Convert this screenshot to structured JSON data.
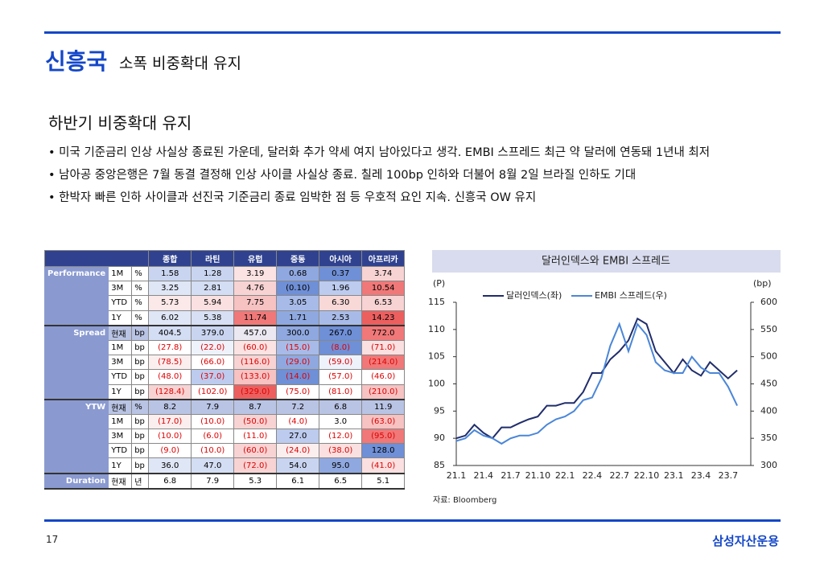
{
  "header": {
    "title": "신흥국",
    "subtitle": "소폭 비중확대 유지"
  },
  "section": {
    "heading": "하반기 비중확대 유지",
    "bullets": [
      "• 미국 기준금리 인상 사실상 종료된 가운데, 달러화 추가 약세 여지 남아있다고 생각. EMBI 스프레드 최근 약 달러에 연동돼 1년내 최저",
      "• 남아공 중앙은행은 7월 동결 결정해 인상 사이클 사실상 종료. 칠레 100bp 인하와 더불어 8월 2일 브라질 인하도 기대",
      "• 한박자 빠른 인하 사이클과 선진국 기준금리 종료 임박한 점 등 우호적 요인 지속. 신흥국 OW 유지"
    ]
  },
  "table": {
    "columns": [
      "종합",
      "라틴",
      "유럽",
      "중동",
      "아시아",
      "아프리카"
    ],
    "groups": [
      {
        "label": "Performance",
        "rows": [
          {
            "period": "1M",
            "unit": "%",
            "cells": [
              "1.58",
              "1.28",
              "3.19",
              "0.68",
              "0.37",
              "3.74"
            ],
            "fills": [
              "#c9d5f0",
              "#c9d5f0",
              "#fbe3e3",
              "#8fa8e0",
              "#6f8fd6",
              "#f8d3d3"
            ]
          },
          {
            "period": "3M",
            "unit": "%",
            "cells": [
              "3.25",
              "2.81",
              "4.76",
              "(0.10)",
              "1.96",
              "10.54"
            ],
            "fills": [
              "#dfe6f6",
              "#d3ddf3",
              "#f8d3d3",
              "#6f8fd6",
              "#bccbee",
              "#f07878"
            ]
          },
          {
            "period": "YTD",
            "unit": "%",
            "cells": [
              "5.73",
              "5.94",
              "7.75",
              "3.05",
              "6.30",
              "6.53"
            ],
            "fills": [
              "#fbe8e8",
              "#fae0e0",
              "#f6c2c2",
              "#a8bbe8",
              "#f9d8d8",
              "#f8d3d3"
            ]
          },
          {
            "period": "1Y",
            "unit": "%",
            "cells": [
              "6.02",
              "5.38",
              "11.74",
              "1.71",
              "2.53",
              "14.23"
            ],
            "fills": [
              "#dfe6f6",
              "#d7dff4",
              "#f07878",
              "#8fa8e0",
              "#a8bbe8",
              "#ec5f5f"
            ]
          }
        ]
      },
      {
        "label": "Spread",
        "negative_color": "#e00000",
        "rows": [
          {
            "period": "현재",
            "unit": "bp",
            "cells": [
              "404.5",
              "379.0",
              "457.0",
              "300.0",
              "267.0",
              "772.0"
            ],
            "fills": [
              "#d3ddf3",
              "#c9d5f0",
              "#ebe8f2",
              "#8fa8e0",
              "#6f8fd6",
              "#f07878"
            ]
          },
          {
            "period": "1M",
            "unit": "bp",
            "cells": [
              "(27.8)",
              "(22.0)",
              "(60.0)",
              "(15.0)",
              "(8.0)",
              "(71.0)"
            ],
            "fills": [
              "#ffffff",
              "#eef2fa",
              "#fbe3e3",
              "#a8bbe8",
              "#6f8fd6",
              "#fae0e0"
            ]
          },
          {
            "period": "3M",
            "unit": "bp",
            "cells": [
              "(78.5)",
              "(66.0)",
              "(116.0)",
              "(29.0)",
              "(59.0)",
              "(214.0)"
            ],
            "fills": [
              "#fbeeee",
              "#ffffff",
              "#f8d3d3",
              "#8fa8e0",
              "#eef2fa",
              "#f07878"
            ]
          },
          {
            "period": "YTD",
            "unit": "bp",
            "cells": [
              "(48.0)",
              "(37.0)",
              "(133.0)",
              "(14.0)",
              "(57.0)",
              "(46.0)"
            ],
            "fills": [
              "#ffffff",
              "#bccbee",
              "#f6c2c2",
              "#6f8fd6",
              "#ffffff",
              "#ffffff"
            ]
          },
          {
            "period": "1Y",
            "unit": "bp",
            "cells": [
              "(128.4)",
              "(102.0)",
              "(329.0)",
              "(75.0)",
              "(81.0)",
              "(210.0)"
            ],
            "fills": [
              "#f8d3d3",
              "#ffffff",
              "#ec5f5f",
              "#ffffff",
              "#ffffff",
              "#f6c2c2"
            ]
          }
        ]
      },
      {
        "label": "YTW",
        "negative_color": "#e00000",
        "rows": [
          {
            "period": "현재",
            "unit": "%",
            "cells": [
              "8.2",
              "7.9",
              "8.7",
              "7.2",
              "6.8",
              "11.9"
            ],
            "fills": [
              "#b9c4e4",
              "#b9c4e4",
              "#b9c4e4",
              "#b9c4e4",
              "#b9c4e4",
              "#b9c4e4"
            ]
          },
          {
            "period": "1M",
            "unit": "bp",
            "cells": [
              "(17.0)",
              "(10.0)",
              "(50.0)",
              "(4.0)",
              "3.0",
              "(63.0)"
            ],
            "fills": [
              "#fbeeee",
              "#ffffff",
              "#f8d3d3",
              "#ffffff",
              "#ffffff",
              "#f6c2c2"
            ]
          },
          {
            "period": "3M",
            "unit": "bp",
            "cells": [
              "(10.0)",
              "(6.0)",
              "(11.0)",
              "27.0",
              "(12.0)",
              "(95.0)"
            ],
            "fills": [
              "#ffffff",
              "#ffffff",
              "#ffffff",
              "#bccbee",
              "#ffffff",
              "#f07878"
            ]
          },
          {
            "period": "YTD",
            "unit": "bp",
            "cells": [
              "(9.0)",
              "(10.0)",
              "(60.0)",
              "(24.0)",
              "(38.0)",
              "128.0"
            ],
            "fills": [
              "#ffffff",
              "#ffffff",
              "#f8d3d3",
              "#fbeeee",
              "#fae0e0",
              "#6f8fd6"
            ]
          },
          {
            "period": "1Y",
            "unit": "bp",
            "cells": [
              "36.0",
              "47.0",
              "(72.0)",
              "54.0",
              "95.0",
              "(41.0)"
            ],
            "fills": [
              "#dfe6f6",
              "#d3ddf3",
              "#f8d3d3",
              "#c9d5f0",
              "#8fa8e0",
              "#fae0e0"
            ]
          }
        ]
      },
      {
        "label": "Duration",
        "rows": [
          {
            "period": "현재",
            "unit": "년",
            "cells": [
              "6.8",
              "7.9",
              "5.3",
              "6.1",
              "6.5",
              "5.1"
            ],
            "fills": [
              "#ffffff",
              "#ffffff",
              "#ffffff",
              "#ffffff",
              "#ffffff",
              "#ffffff"
            ]
          }
        ]
      }
    ]
  },
  "chart_data": {
    "type": "line",
    "title": "달러인덱스와 EMBI 스프레드",
    "y_unit": "(P)",
    "y2_unit": "(bp)",
    "x": [
      "21.1",
      null,
      null,
      "21.4",
      null,
      null,
      "21.7",
      null,
      null,
      "21.10",
      null,
      null,
      "22.1",
      null,
      null,
      "22.4",
      null,
      null,
      "22.7",
      null,
      null,
      "22.10",
      null,
      null,
      "23.1",
      null,
      null,
      "23.4",
      null,
      null,
      "23.7",
      null
    ],
    "series": [
      {
        "name": "달러인덱스(좌)",
        "color": "#1f2d6b",
        "values": [
          90,
          90.5,
          92.5,
          91,
          90,
          92,
          92,
          92.8,
          93.5,
          94,
          96,
          96,
          96.5,
          96.5,
          98.5,
          102,
          102,
          104.5,
          106,
          108,
          112,
          111,
          106,
          104,
          102,
          104.5,
          102.5,
          101.5,
          104,
          102.5,
          101,
          102.5
        ]
      },
      {
        "name": "EMBI 스프레드(우)",
        "color": "#4a86d8",
        "axis": "y2",
        "values": [
          345,
          350,
          365,
          355,
          350,
          340,
          350,
          355,
          355,
          360,
          375,
          385,
          390,
          400,
          420,
          425,
          460,
          520,
          560,
          510,
          560,
          540,
          490,
          475,
          470,
          470,
          500,
          480,
          470,
          470,
          445,
          410
        ]
      }
    ],
    "ylim": [
      85,
      115
    ],
    "yticks": [
      85,
      90,
      95,
      100,
      105,
      110,
      115
    ],
    "y2lim": [
      300,
      600
    ],
    "y2ticks": [
      300,
      350,
      400,
      450,
      500,
      550,
      600
    ],
    "title_fill": "#d9dcee",
    "source": "자료: Bloomberg"
  },
  "footer": {
    "page": "17",
    "brand": "삼성자산운용"
  }
}
